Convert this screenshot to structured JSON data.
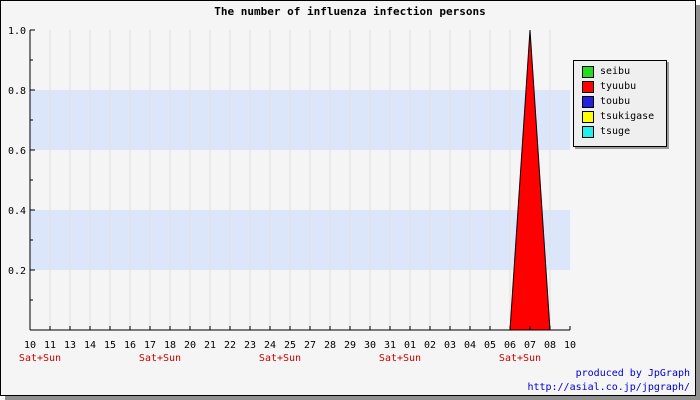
{
  "chart_data": {
    "type": "area",
    "title": "The number of influenza infection persons",
    "xlabel": "",
    "ylabel": "",
    "ylim": [
      0,
      1.0
    ],
    "y_ticks": [
      "0.2",
      "0.4",
      "0.6",
      "0.8",
      "1.0"
    ],
    "x": [
      "10",
      "11",
      "13",
      "14",
      "15",
      "16",
      "17",
      "18",
      "20",
      "21",
      "22",
      "23",
      "24",
      "25",
      "27",
      "28",
      "29",
      "30",
      "31",
      "01",
      "02",
      "03",
      "04",
      "05",
      "06",
      "07",
      "08",
      "10"
    ],
    "weekend_marks": [
      {
        "after_index": 0,
        "label": "Sat+Sun"
      },
      {
        "after_index": 6,
        "label": "Sat+Sun"
      },
      {
        "after_index": 12,
        "label": "Sat+Sun"
      },
      {
        "after_index": 18,
        "label": "Sat+Sun"
      },
      {
        "after_index": 24,
        "label": "Sat+Sun"
      }
    ],
    "series": [
      {
        "name": "seibu",
        "color": "#22dd22",
        "values": [
          0,
          0,
          0,
          0,
          0,
          0,
          0,
          0,
          0,
          0,
          0,
          0,
          0,
          0,
          0,
          0,
          0,
          0,
          0,
          0,
          0,
          0,
          0,
          0,
          0,
          0,
          0,
          0
        ]
      },
      {
        "name": "tyuubu",
        "color": "#ff0000",
        "values": [
          0,
          0,
          0,
          0,
          0,
          0,
          0,
          0,
          0,
          0,
          0,
          0,
          0,
          0,
          0,
          0,
          0,
          0,
          0,
          0,
          0,
          0,
          0,
          0,
          0,
          1,
          0,
          0
        ]
      },
      {
        "name": "toubu",
        "color": "#2222dd",
        "values": [
          0,
          0,
          0,
          0,
          0,
          0,
          0,
          0,
          0,
          0,
          0,
          0,
          0,
          0,
          0,
          0,
          0,
          0,
          0,
          0,
          0,
          0,
          0,
          0,
          0,
          0,
          0,
          0
        ]
      },
      {
        "name": "tsukigase",
        "color": "#ffff00",
        "values": [
          0,
          0,
          0,
          0,
          0,
          0,
          0,
          0,
          0,
          0,
          0,
          0,
          0,
          0,
          0,
          0,
          0,
          0,
          0,
          0,
          0,
          0,
          0,
          0,
          0,
          0,
          0,
          0
        ]
      },
      {
        "name": "tsuge",
        "color": "#22eeee",
        "values": [
          0,
          0,
          0,
          0,
          0,
          0,
          0,
          0,
          0,
          0,
          0,
          0,
          0,
          0,
          0,
          0,
          0,
          0,
          0,
          0,
          0,
          0,
          0,
          0,
          0,
          0,
          0,
          0
        ]
      }
    ],
    "grid": true,
    "legend_position": "right"
  },
  "credit": {
    "line1": "produced by JpGraph",
    "line2": "http://asial.co.jp/jpgraph/"
  }
}
